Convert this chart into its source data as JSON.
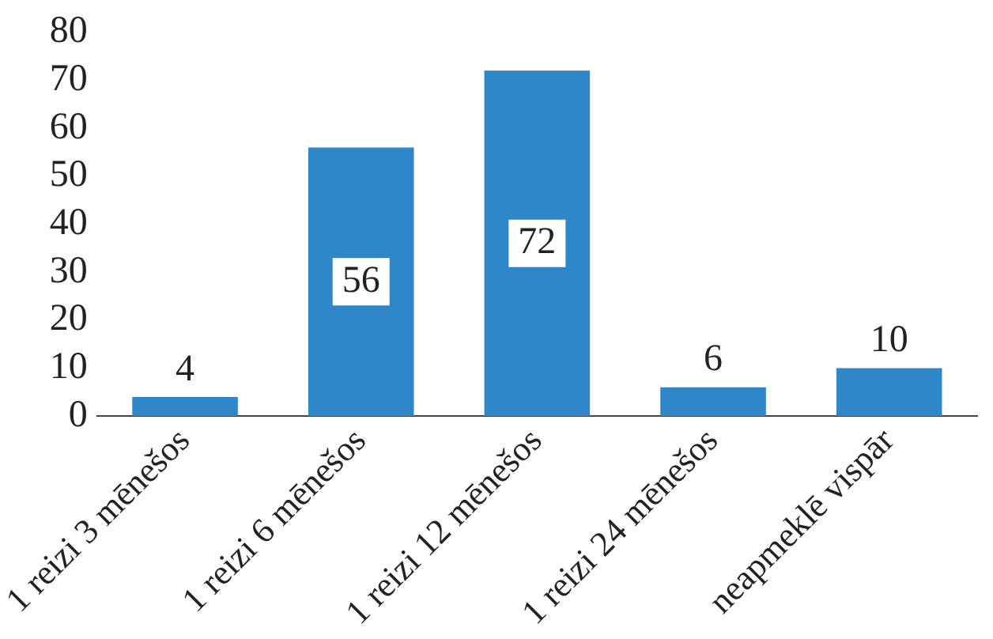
{
  "chart_data": {
    "type": "bar",
    "categories": [
      "1 reizi 3 mēnešos",
      "1 reizi 6 mēnešos",
      "1 reizi 12 mēnešos",
      "1 reizi 24 mēnešos",
      "neapmeklē vispār"
    ],
    "values": [
      4,
      56,
      72,
      6,
      10
    ],
    "color": "#2f87c9",
    "ylim": [
      0,
      80
    ],
    "yticks": [
      0,
      10,
      20,
      30,
      40,
      50,
      60,
      70,
      80
    ],
    "grid": false,
    "data_labels": true
  }
}
